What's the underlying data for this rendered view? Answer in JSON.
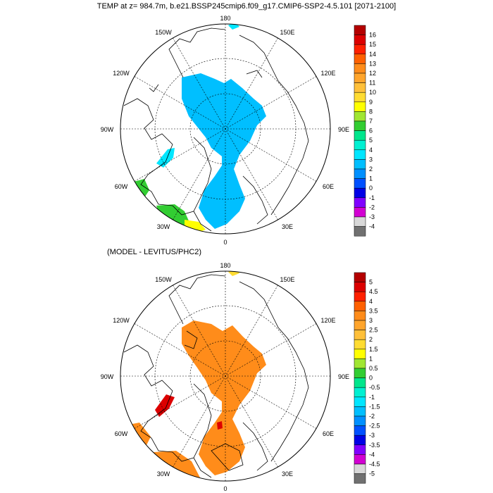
{
  "title": "TEMP at z= 984.7m, b.e21.BSSP245cmip6.f09_g17.CMIP6-SSP2-4.5.101 [2071-2100]",
  "panel_bottom_title": "(MODEL - LEVITUS/PHC2)",
  "lon_labels": {
    "top": "180",
    "bottom": "0",
    "l150": "150W",
    "r150": "150E",
    "l120": "120W",
    "r120": "120E",
    "l90": "90W",
    "r90": "90E",
    "l60": "60W",
    "r60": "60E",
    "l30": "30W",
    "r30": "30E"
  },
  "colorbar_top": {
    "labels": [
      "16",
      "15",
      "14",
      "13",
      "12",
      "11",
      "10",
      "9",
      "8",
      "7",
      "6",
      "5",
      "4",
      "3",
      "2",
      "1",
      "0",
      "-1",
      "-2",
      "-3",
      "-4"
    ],
    "colors": [
      "#b40000",
      "#dc0000",
      "#ff2000",
      "#ff6000",
      "#ff8c1a",
      "#ffa52c",
      "#ffc03a",
      "#ffdc32",
      "#ffff00",
      "#a0e632",
      "#32cd32",
      "#00e68c",
      "#00f0d2",
      "#00e6ff",
      "#00bfff",
      "#0090ff",
      "#0050ff",
      "#0000e6",
      "#8000ff",
      "#d200d2",
      "#d8d8d8",
      "#707070"
    ]
  },
  "colorbar_bottom": {
    "labels": [
      "5",
      "4.5",
      "4",
      "3.5",
      "3",
      "2.5",
      "2",
      "1.5",
      "1",
      "0.5",
      "0",
      "-0.5",
      "-1",
      "-1.5",
      "-2",
      "-2.5",
      "-3",
      "-3.5",
      "-4",
      "-4.5",
      "-5"
    ],
    "colors": [
      "#b40000",
      "#dc0000",
      "#ff2000",
      "#ff6000",
      "#ff8c1a",
      "#ffa52c",
      "#ffc03a",
      "#ffdc32",
      "#ffff00",
      "#a0e632",
      "#32cd32",
      "#00e68c",
      "#00f0d2",
      "#00e6ff",
      "#00bfff",
      "#0090ff",
      "#0050ff",
      "#0000e6",
      "#8000ff",
      "#d200d2",
      "#d8d8d8",
      "#707070"
    ]
  },
  "map_fill": {
    "top_main": "#00bfff",
    "top_patch_cyan": "#00e6ff",
    "top_green": "#32cd32",
    "top_yellow": "#ffff00",
    "bottom_main": "#ff8c1a",
    "bottom_red": "#dc0000"
  }
}
